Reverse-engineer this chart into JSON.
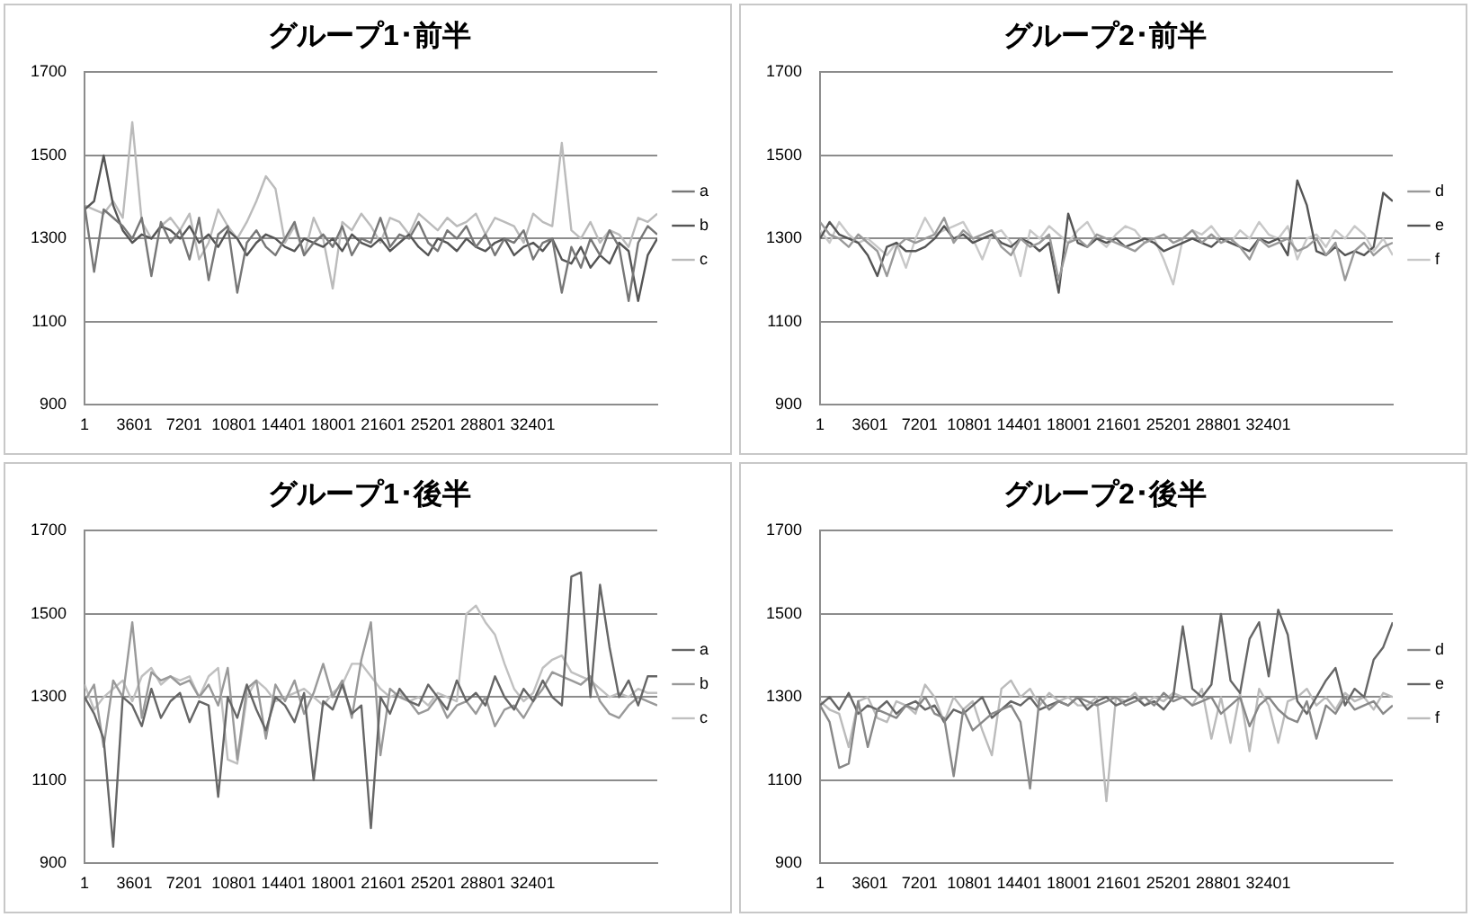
{
  "chart_data": [
    {
      "type": "line",
      "title": "グループ1･前半",
      "x": [
        1,
        691,
        1381,
        2071,
        2761,
        3451,
        4141,
        4831,
        5521,
        6211,
        6901,
        7591,
        8281,
        8971,
        9661,
        10351,
        11041,
        11731,
        12421,
        13111,
        13801,
        14491,
        15181,
        15871,
        16561,
        17251,
        17941,
        18631,
        19321,
        20011,
        20701,
        21391,
        22081,
        22771,
        23461,
        24151,
        24841,
        25531,
        26221,
        26911,
        27601,
        28291,
        28981,
        29671,
        30361,
        31051,
        31741,
        32431,
        33121,
        33811,
        34501,
        35191,
        35881,
        36571,
        37261,
        37951,
        38641,
        39331,
        40021,
        40711,
        41401
      ],
      "xlim": [
        1,
        41401
      ],
      "xticks": [
        1,
        3601,
        7201,
        10801,
        14401,
        18001,
        21601,
        25201,
        28801,
        32401
      ],
      "ylim": [
        900,
        1700
      ],
      "yticks": [
        900,
        1100,
        1300,
        1500,
        1700
      ],
      "grid": "y",
      "legend": "right",
      "marker": "none",
      "series": [
        {
          "name": "a",
          "color": "#777777",
          "values": [
            1380,
            1220,
            1370,
            1350,
            1330,
            1300,
            1350,
            1210,
            1340,
            1290,
            1320,
            1250,
            1350,
            1200,
            1310,
            1330,
            1170,
            1290,
            1320,
            1280,
            1260,
            1300,
            1340,
            1260,
            1290,
            1310,
            1280,
            1330,
            1260,
            1300,
            1290,
            1350,
            1280,
            1310,
            1300,
            1340,
            1290,
            1270,
            1320,
            1300,
            1330,
            1280,
            1310,
            1260,
            1300,
            1290,
            1320,
            1250,
            1290,
            1300,
            1170,
            1280,
            1230,
            1300,
            1260,
            1320,
            1280,
            1150,
            1290,
            1330,
            1310
          ]
        },
        {
          "name": "b",
          "color": "#555555",
          "values": [
            1370,
            1390,
            1500,
            1380,
            1320,
            1290,
            1310,
            1300,
            1330,
            1320,
            1300,
            1330,
            1290,
            1310,
            1280,
            1320,
            1300,
            1260,
            1290,
            1310,
            1300,
            1280,
            1270,
            1300,
            1290,
            1280,
            1300,
            1270,
            1310,
            1290,
            1280,
            1300,
            1270,
            1290,
            1310,
            1280,
            1260,
            1300,
            1290,
            1270,
            1300,
            1280,
            1270,
            1290,
            1300,
            1260,
            1280,
            1290,
            1270,
            1300,
            1250,
            1240,
            1280,
            1230,
            1260,
            1240,
            1290,
            1270,
            1150,
            1260,
            1300
          ]
        },
        {
          "name": "c",
          "color": "#bbbbbb",
          "values": [
            1380,
            1370,
            1360,
            1390,
            1350,
            1580,
            1340,
            1300,
            1330,
            1350,
            1320,
            1360,
            1250,
            1290,
            1370,
            1330,
            1300,
            1340,
            1390,
            1450,
            1420,
            1290,
            1330,
            1260,
            1350,
            1300,
            1180,
            1340,
            1320,
            1360,
            1330,
            1290,
            1350,
            1340,
            1310,
            1360,
            1340,
            1320,
            1350,
            1330,
            1340,
            1360,
            1310,
            1350,
            1340,
            1330,
            1290,
            1360,
            1340,
            1330,
            1530,
            1320,
            1300,
            1340,
            1290,
            1320,
            1310,
            1280,
            1350,
            1340,
            1360
          ]
        }
      ]
    },
    {
      "type": "line",
      "title": "グループ2･前半",
      "x": [
        1,
        691,
        1381,
        2071,
        2761,
        3451,
        4141,
        4831,
        5521,
        6211,
        6901,
        7591,
        8281,
        8971,
        9661,
        10351,
        11041,
        11731,
        12421,
        13111,
        13801,
        14491,
        15181,
        15871,
        16561,
        17251,
        17941,
        18631,
        19321,
        20011,
        20701,
        21391,
        22081,
        22771,
        23461,
        24151,
        24841,
        25531,
        26221,
        26911,
        27601,
        28291,
        28981,
        29671,
        30361,
        31051,
        31741,
        32431,
        33121,
        33811,
        34501,
        35191,
        35881,
        36571,
        37261,
        37951,
        38641,
        39331,
        40021,
        40711,
        41401
      ],
      "xlim": [
        1,
        41401
      ],
      "xticks": [
        1,
        3601,
        7201,
        10801,
        14401,
        18001,
        21601,
        25201,
        28801,
        32401
      ],
      "ylim": [
        900,
        1700
      ],
      "yticks": [
        900,
        1100,
        1300,
        1500,
        1700
      ],
      "grid": "y",
      "legend": "right",
      "marker": "none",
      "series": [
        {
          "name": "d",
          "color": "#999999",
          "values": [
            1340,
            1310,
            1300,
            1280,
            1310,
            1290,
            1270,
            1210,
            1280,
            1300,
            1290,
            1300,
            1310,
            1350,
            1290,
            1320,
            1300,
            1310,
            1320,
            1280,
            1260,
            1300,
            1280,
            1290,
            1310,
            1200,
            1290,
            1300,
            1280,
            1310,
            1300,
            1290,
            1280,
            1270,
            1290,
            1300,
            1310,
            1290,
            1300,
            1320,
            1290,
            1310,
            1290,
            1300,
            1280,
            1250,
            1300,
            1280,
            1290,
            1300,
            1270,
            1280,
            1300,
            1260,
            1290,
            1200,
            1270,
            1290,
            1260,
            1280,
            1290
          ]
        },
        {
          "name": "e",
          "color": "#555555",
          "values": [
            1300,
            1340,
            1310,
            1300,
            1290,
            1260,
            1210,
            1280,
            1290,
            1270,
            1270,
            1280,
            1300,
            1330,
            1300,
            1310,
            1290,
            1300,
            1310,
            1290,
            1280,
            1300,
            1290,
            1270,
            1290,
            1170,
            1360,
            1290,
            1280,
            1300,
            1290,
            1300,
            1280,
            1290,
            1300,
            1290,
            1270,
            1280,
            1290,
            1300,
            1290,
            1280,
            1300,
            1290,
            1280,
            1270,
            1300,
            1290,
            1300,
            1260,
            1440,
            1380,
            1270,
            1260,
            1280,
            1260,
            1270,
            1260,
            1280,
            1410,
            1390
          ]
        },
        {
          "name": "f",
          "color": "#c8c8c8",
          "values": [
            1320,
            1290,
            1340,
            1310,
            1290,
            1300,
            1280,
            1260,
            1290,
            1230,
            1300,
            1350,
            1310,
            1320,
            1330,
            1340,
            1300,
            1250,
            1310,
            1320,
            1290,
            1210,
            1320,
            1300,
            1330,
            1310,
            1290,
            1320,
            1340,
            1300,
            1280,
            1310,
            1330,
            1320,
            1290,
            1300,
            1250,
            1190,
            1300,
            1320,
            1310,
            1330,
            1300,
            1290,
            1320,
            1300,
            1340,
            1310,
            1300,
            1330,
            1250,
            1300,
            1310,
            1280,
            1320,
            1300,
            1330,
            1310,
            1270,
            1300,
            1260
          ]
        }
      ]
    },
    {
      "type": "line",
      "title": "グループ1･後半",
      "x": [
        1,
        691,
        1381,
        2071,
        2761,
        3451,
        4141,
        4831,
        5521,
        6211,
        6901,
        7591,
        8281,
        8971,
        9661,
        10351,
        11041,
        11731,
        12421,
        13111,
        13801,
        14491,
        15181,
        15871,
        16561,
        17251,
        17941,
        18631,
        19321,
        20011,
        20701,
        21391,
        22081,
        22771,
        23461,
        24151,
        24841,
        25531,
        26221,
        26911,
        27601,
        28291,
        28981,
        29671,
        30361,
        31051,
        31741,
        32431,
        33121,
        33811,
        34501,
        35191,
        35881,
        36571,
        37261,
        37951,
        38641,
        39331,
        40021,
        40711,
        41401
      ],
      "xlim": [
        1,
        41401
      ],
      "xticks": [
        1,
        3601,
        7201,
        10801,
        14401,
        18001,
        21601,
        25201,
        28801,
        32401
      ],
      "ylim": [
        900,
        1700
      ],
      "yticks": [
        900,
        1100,
        1300,
        1500,
        1700
      ],
      "grid": "y",
      "legend": "right",
      "marker": "none",
      "series": [
        {
          "name": "a",
          "color": "#666666",
          "values": [
            1300,
            1260,
            1200,
            940,
            1300,
            1280,
            1230,
            1320,
            1250,
            1290,
            1310,
            1240,
            1290,
            1280,
            1060,
            1300,
            1250,
            1330,
            1270,
            1220,
            1300,
            1280,
            1240,
            1310,
            1100,
            1290,
            1270,
            1330,
            1260,
            1280,
            985,
            1300,
            1260,
            1320,
            1290,
            1280,
            1330,
            1300,
            1270,
            1340,
            1290,
            1310,
            1280,
            1350,
            1300,
            1270,
            1320,
            1290,
            1340,
            1300,
            1280,
            1590,
            1600,
            1300,
            1570,
            1420,
            1300,
            1340,
            1280,
            1350,
            1350
          ]
        },
        {
          "name": "b",
          "color": "#999999",
          "values": [
            1290,
            1330,
            1180,
            1340,
            1300,
            1480,
            1250,
            1360,
            1340,
            1350,
            1330,
            1340,
            1300,
            1330,
            1280,
            1370,
            1150,
            1320,
            1340,
            1200,
            1330,
            1290,
            1340,
            1260,
            1310,
            1380,
            1300,
            1340,
            1250,
            1390,
            1480,
            1160,
            1320,
            1300,
            1290,
            1260,
            1270,
            1300,
            1250,
            1280,
            1290,
            1260,
            1300,
            1230,
            1270,
            1280,
            1250,
            1290,
            1320,
            1360,
            1350,
            1340,
            1330,
            1350,
            1290,
            1260,
            1250,
            1280,
            1300,
            1290,
            1280
          ]
        },
        {
          "name": "c",
          "color": "#c0c0c0",
          "values": [
            1330,
            1270,
            1300,
            1320,
            1340,
            1290,
            1350,
            1370,
            1330,
            1350,
            1340,
            1350,
            1300,
            1350,
            1370,
            1150,
            1140,
            1300,
            1340,
            1320,
            1290,
            1300,
            1310,
            1320,
            1300,
            1280,
            1310,
            1330,
            1380,
            1380,
            1350,
            1320,
            1300,
            1310,
            1290,
            1300,
            1280,
            1310,
            1300,
            1290,
            1500,
            1520,
            1480,
            1450,
            1380,
            1320,
            1290,
            1310,
            1370,
            1390,
            1400,
            1360,
            1350,
            1340,
            1320,
            1300,
            1310,
            1300,
            1320,
            1310,
            1310
          ]
        }
      ]
    },
    {
      "type": "line",
      "title": "グループ2･後半",
      "x": [
        1,
        691,
        1381,
        2071,
        2761,
        3451,
        4141,
        4831,
        5521,
        6211,
        6901,
        7591,
        8281,
        8971,
        9661,
        10351,
        11041,
        11731,
        12421,
        13111,
        13801,
        14491,
        15181,
        15871,
        16561,
        17251,
        17941,
        18631,
        19321,
        20011,
        20701,
        21391,
        22081,
        22771,
        23461,
        24151,
        24841,
        25531,
        26221,
        26911,
        27601,
        28291,
        28981,
        29671,
        30361,
        31051,
        31741,
        32431,
        33121,
        33811,
        34501,
        35191,
        35881,
        36571,
        37261,
        37951,
        38641,
        39331,
        40021,
        40711,
        41401
      ],
      "xlim": [
        1,
        41401
      ],
      "xticks": [
        1,
        3601,
        7201,
        10801,
        14401,
        18001,
        21601,
        25201,
        28801,
        32401
      ],
      "ylim": [
        900,
        1700
      ],
      "yticks": [
        900,
        1100,
        1300,
        1500,
        1700
      ],
      "grid": "y",
      "legend": "right",
      "marker": "none",
      "series": [
        {
          "name": "d",
          "color": "#888888",
          "values": [
            1280,
            1240,
            1130,
            1140,
            1290,
            1180,
            1270,
            1260,
            1250,
            1280,
            1270,
            1300,
            1260,
            1250,
            1110,
            1270,
            1220,
            1240,
            1260,
            1270,
            1280,
            1240,
            1080,
            1300,
            1270,
            1290,
            1280,
            1300,
            1290,
            1280,
            1290,
            1300,
            1280,
            1290,
            1300,
            1280,
            1310,
            1290,
            1300,
            1280,
            1290,
            1300,
            1260,
            1280,
            1300,
            1230,
            1280,
            1300,
            1270,
            1250,
            1240,
            1290,
            1200,
            1280,
            1260,
            1300,
            1270,
            1280,
            1290,
            1260,
            1280
          ]
        },
        {
          "name": "e",
          "color": "#666666",
          "values": [
            1280,
            1300,
            1270,
            1310,
            1260,
            1280,
            1270,
            1290,
            1260,
            1280,
            1290,
            1270,
            1280,
            1240,
            1270,
            1260,
            1280,
            1300,
            1250,
            1270,
            1290,
            1280,
            1300,
            1270,
            1280,
            1290,
            1280,
            1300,
            1270,
            1290,
            1300,
            1280,
            1290,
            1300,
            1280,
            1290,
            1270,
            1300,
            1470,
            1320,
            1300,
            1330,
            1500,
            1340,
            1310,
            1440,
            1480,
            1350,
            1510,
            1450,
            1290,
            1260,
            1300,
            1340,
            1370,
            1280,
            1320,
            1300,
            1390,
            1420,
            1480
          ]
        },
        {
          "name": "f",
          "color": "#bbbbbb",
          "values": [
            1290,
            1270,
            1260,
            1180,
            1290,
            1300,
            1250,
            1240,
            1290,
            1280,
            1260,
            1330,
            1300,
            1240,
            1300,
            1270,
            1290,
            1220,
            1160,
            1320,
            1340,
            1300,
            1320,
            1280,
            1310,
            1290,
            1300,
            1280,
            1280,
            1300,
            1050,
            1300,
            1290,
            1310,
            1280,
            1300,
            1290,
            1310,
            1300,
            1280,
            1320,
            1200,
            1300,
            1190,
            1310,
            1170,
            1320,
            1280,
            1190,
            1290,
            1300,
            1320,
            1280,
            1300,
            1270,
            1310,
            1290,
            1300,
            1270,
            1310,
            1300
          ]
        }
      ]
    }
  ]
}
